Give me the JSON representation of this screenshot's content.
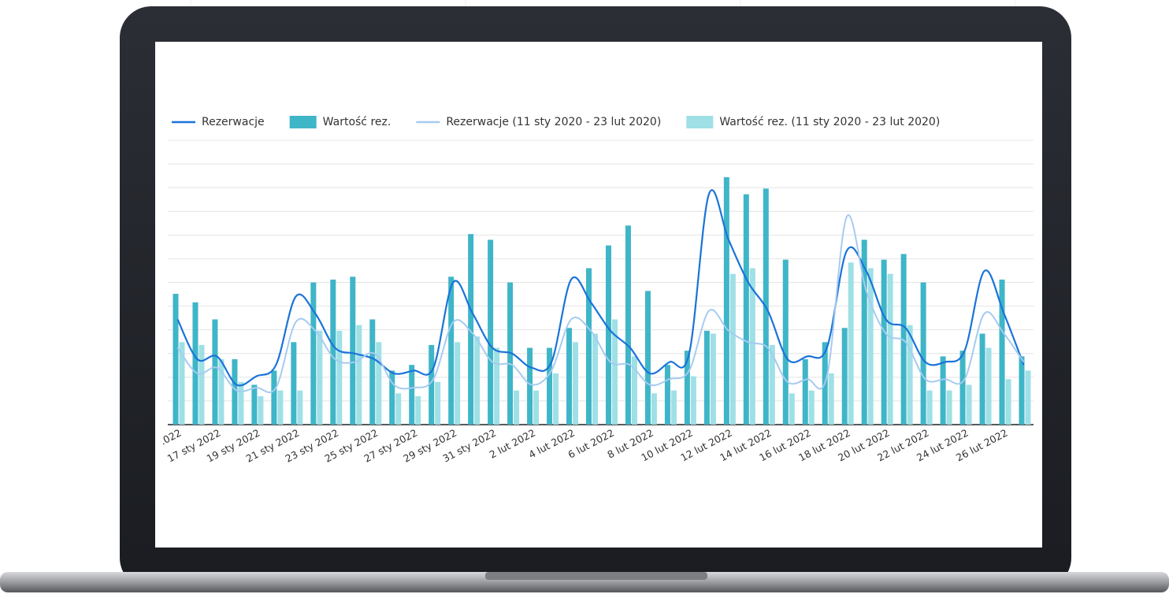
{
  "chart_data": {
    "type": "bar-line",
    "categories": [
      ".022",
      null,
      "17 sty 2022",
      null,
      "19 sty 2022",
      null,
      "21 sty 2022",
      null,
      "23 sty 2022",
      null,
      "25 sty 2022",
      null,
      "27 sty 2022",
      null,
      "29 sty 2022",
      null,
      "31 sty 2022",
      null,
      "2 lut 2022",
      null,
      "4 lut 2022",
      null,
      "6 lut 2022",
      null,
      "8 lut 2022",
      null,
      "10 lut 2022",
      null,
      "12 lut 2022",
      null,
      "14 lut 2022",
      null,
      "16 lut 2022",
      null,
      "18 lut 2022",
      null,
      "20 lut 2022",
      null,
      "22 lut 2022",
      null,
      "24 lut 2022",
      null,
      "26 lut 2022",
      null
    ],
    "ylim": [
      0,
      100
    ],
    "grid": true,
    "series": [
      {
        "name": "Rezerwacje",
        "kind": "line",
        "color": "#1a73d9",
        "values": [
          37,
          23,
          24,
          14,
          17,
          21,
          45,
          39,
          27,
          25,
          23,
          18,
          19,
          20,
          50,
          39,
          27,
          25,
          20,
          22,
          51,
          43,
          33,
          27,
          18,
          22,
          25,
          81,
          65,
          50,
          40,
          23,
          24,
          27,
          61,
          54,
          37,
          34,
          22,
          22,
          26,
          54,
          39,
          21
        ]
      },
      {
        "name": "Wartość rez.",
        "kind": "bar",
        "color": "#3fb5c8",
        "values": [
          46,
          43,
          37,
          23,
          14,
          19,
          29,
          50,
          51,
          52,
          37,
          19,
          21,
          28,
          52,
          67,
          65,
          50,
          27,
          27,
          34,
          55,
          63,
          70,
          47,
          21,
          26,
          33,
          87,
          81,
          83,
          58,
          23,
          29,
          34,
          65,
          58,
          60,
          50,
          24,
          26,
          32,
          51,
          24
        ]
      },
      {
        "name": "Rezerwacje (11 sty 2020 - 23 lut 2020)",
        "kind": "line",
        "color": "#a6cbf0",
        "values": [
          27,
          18,
          20,
          12,
          13,
          13,
          36,
          33,
          23,
          22,
          25,
          14,
          13,
          16,
          36,
          32,
          22,
          21,
          14,
          19,
          37,
          33,
          22,
          21,
          14,
          16,
          19,
          40,
          33,
          29,
          27,
          15,
          16,
          17,
          73,
          47,
          32,
          29,
          16,
          16,
          16,
          39,
          32,
          22
        ]
      },
      {
        "name": "Wartość rez. (11 sty 2020 - 23 lut 2020)",
        "kind": "bar",
        "color": "#9ee0e6",
        "values": [
          29,
          28,
          23,
          15,
          10,
          12,
          12,
          33,
          33,
          35,
          29,
          11,
          10,
          15,
          29,
          31,
          27,
          12,
          12,
          18,
          29,
          32,
          37,
          24,
          11,
          12,
          17,
          32,
          53,
          55,
          28,
          11,
          12,
          18,
          57,
          55,
          53,
          35,
          12,
          12,
          14,
          27,
          16,
          19
        ]
      }
    ]
  }
}
